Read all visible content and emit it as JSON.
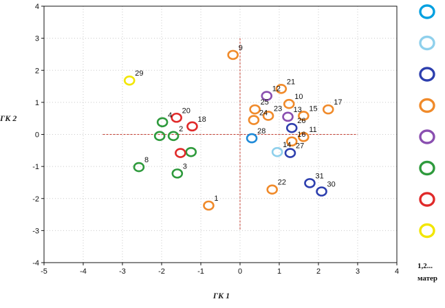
{
  "chart_data": {
    "type": "scatter",
    "title": "",
    "xlabel": "ГК 1",
    "ylabel": "ГК 2",
    "xlim": [
      -5,
      4
    ],
    "ylim": [
      -4,
      4
    ],
    "xticks": [
      -5,
      -4,
      -3,
      -2,
      -1,
      0,
      1,
      2,
      3,
      4
    ],
    "yticks": [
      -4,
      -3,
      -2,
      -1,
      0,
      1,
      2,
      3,
      4
    ],
    "grid": true,
    "legend_position": "right",
    "legend_note": "1,2...",
    "legend_note2": "матер",
    "series": [
      {
        "name": "group-cyan",
        "color": "#00a0e0",
        "points": []
      },
      {
        "name": "group-lightblue",
        "color": "#8fd0ec",
        "points": [
          {
            "label": "14",
            "x": 0.95,
            "y": -0.55
          }
        ]
      },
      {
        "name": "group-navy",
        "color": "#2d3fae",
        "points": [
          {
            "label": "26",
            "x": 1.32,
            "y": 0.2
          },
          {
            "label": "27",
            "x": 1.28,
            "y": -0.58
          },
          {
            "label": "31",
            "x": 1.78,
            "y": -1.52
          },
          {
            "label": "30",
            "x": 2.08,
            "y": -1.78
          }
        ]
      },
      {
        "name": "group-orange",
        "color": "#f08a2a",
        "points": [
          {
            "label": "9",
            "x": -0.18,
            "y": 2.48
          },
          {
            "label": "21",
            "x": 1.05,
            "y": 1.42
          },
          {
            "label": "10",
            "x": 1.25,
            "y": 0.95
          },
          {
            "label": "25",
            "x": 0.38,
            "y": 0.78
          },
          {
            "label": "23",
            "x": 0.72,
            "y": 0.58
          },
          {
            "label": "24",
            "x": 0.35,
            "y": 0.45
          },
          {
            "label": "17",
            "x": 2.25,
            "y": 0.78
          },
          {
            "label": "15",
            "x": 1.62,
            "y": 0.58
          },
          {
            "label": "11",
            "x": 1.62,
            "y": -0.08
          },
          {
            "label": "16",
            "x": 1.32,
            "y": -0.22
          },
          {
            "label": "22",
            "x": 0.82,
            "y": -1.72
          },
          {
            "label": "1",
            "x": -0.8,
            "y": -2.22
          }
        ]
      },
      {
        "name": "group-purple",
        "color": "#8a4fb0",
        "points": [
          {
            "label": "12",
            "x": 0.68,
            "y": 1.2
          },
          {
            "label": "13",
            "x": 1.22,
            "y": 0.55
          }
        ]
      },
      {
        "name": "group-green",
        "color": "#2e9a3c",
        "points": [
          {
            "label": "4",
            "x": -1.98,
            "y": 0.38
          },
          {
            "label": "2",
            "x": -1.7,
            "y": -0.05
          },
          {
            "label": "",
            "x": -2.05,
            "y": -0.05
          },
          {
            "label": "",
            "x": -1.25,
            "y": -0.55
          },
          {
            "label": "3",
            "x": -1.6,
            "y": -1.22
          },
          {
            "label": "8",
            "x": -2.58,
            "y": -1.02
          }
        ]
      },
      {
        "name": "group-red",
        "color": "#e02a2a",
        "points": [
          {
            "label": "20",
            "x": -1.62,
            "y": 0.52
          },
          {
            "label": "18",
            "x": -1.22,
            "y": 0.25
          },
          {
            "label": "",
            "x": -1.52,
            "y": -0.58
          }
        ]
      },
      {
        "name": "group-yellow",
        "color": "#f2e600",
        "points": [
          {
            "label": "29",
            "x": -2.82,
            "y": 1.68
          }
        ]
      },
      {
        "name": "group-blue-28",
        "color": "#1f8ad8",
        "points": [
          {
            "label": "28",
            "x": 0.3,
            "y": -0.12
          }
        ]
      }
    ],
    "reference_lines": {
      "x": 0,
      "y": 0,
      "x_range": [
        -3.5,
        3.0
      ],
      "y_range": [
        -3.0,
        3.0
      ]
    }
  }
}
